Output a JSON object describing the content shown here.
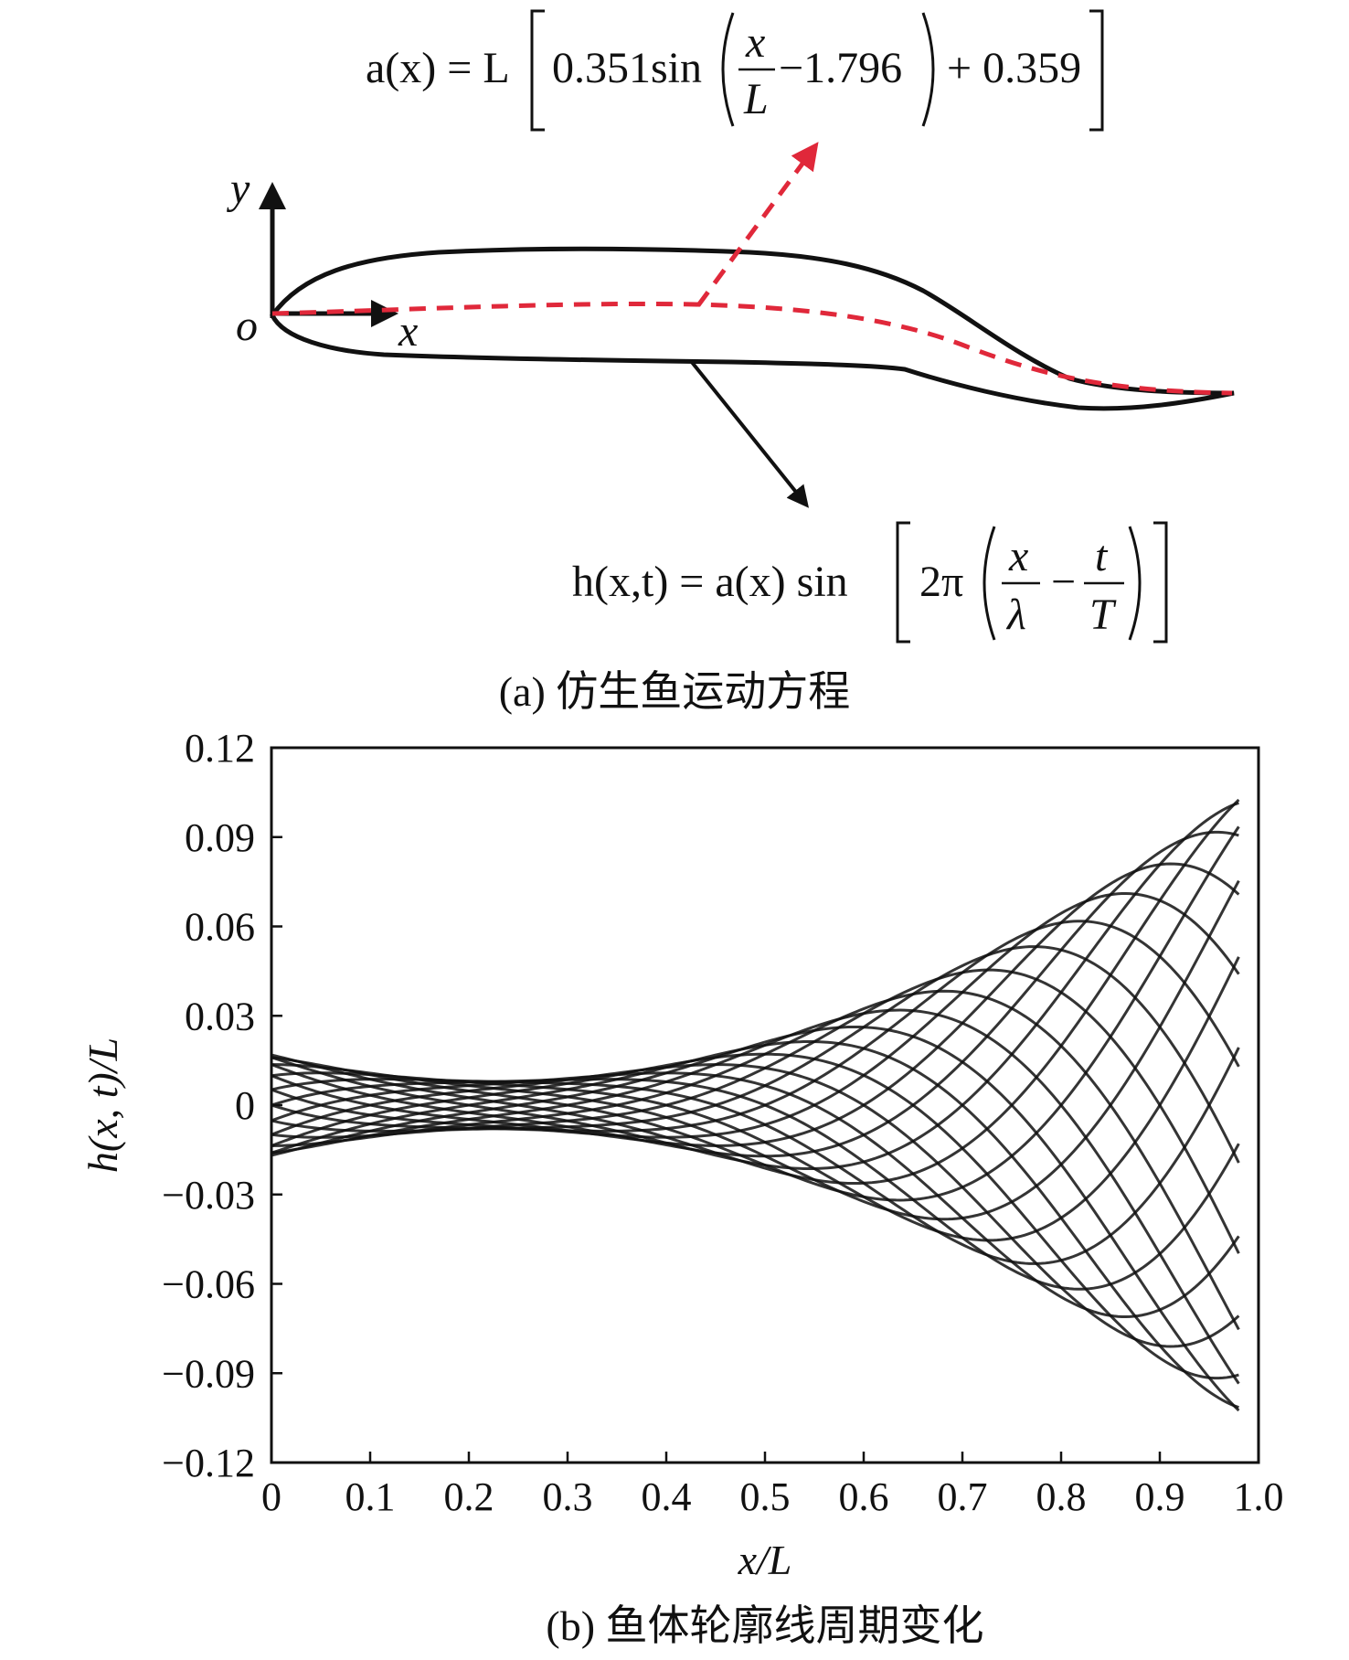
{
  "panel_a": {
    "caption": "(a) 仿生鱼运动方程",
    "axis_y_label": "y",
    "axis_x_label": "x",
    "origin_label": "o",
    "eq_amplitude": {
      "lhs": "a(x) = L",
      "coef": "0.351sin",
      "frac_num": "x",
      "frac_den": "L",
      "phase": "−1.796",
      "offset": "+ 0.359"
    },
    "eq_wave": {
      "lhs": "h(x,t) = a(x) sin",
      "two_pi": "2π",
      "frac1_num": "x",
      "frac1_den": "λ",
      "minus": "−",
      "frac2_num": "t",
      "frac2_den": "T"
    },
    "colors": {
      "outline": "#111111",
      "midline": "#e0283a",
      "arrow_amplitude": "#e0283a",
      "arrow_wave": "#111111"
    }
  },
  "chart_data": {
    "type": "line",
    "xlabel": "x/L",
    "ylabel": "h(x, t)/L",
    "xlim": [
      0,
      1.0
    ],
    "ylim": [
      -0.12,
      0.12
    ],
    "x_ticks": [
      "0",
      "0.1",
      "0.2",
      "0.3",
      "0.4",
      "0.5",
      "0.6",
      "0.7",
      "0.8",
      "0.9",
      "1.0"
    ],
    "y_ticks": [
      "0.12",
      "0.09",
      "0.06",
      "0.03",
      "0",
      "−0.03",
      "−0.06",
      "−0.09",
      "−0.12"
    ],
    "x_tick_values": [
      0,
      0.1,
      0.2,
      0.3,
      0.4,
      0.5,
      0.6,
      0.7,
      0.8,
      0.9,
      1.0
    ],
    "y_tick_values": [
      0.12,
      0.09,
      0.06,
      0.03,
      0,
      -0.03,
      -0.06,
      -0.09,
      -0.12
    ],
    "amplitude_coefficients": [
      0.351,
      -1.796,
      0.359
    ],
    "x_end": 0.98,
    "wavelength": 1.0,
    "phase_fractions": [
      0,
      0.05,
      0.1,
      0.15,
      0.2,
      0.25,
      0.3,
      0.35,
      0.4,
      0.45,
      0.5,
      0.55,
      0.6,
      0.65,
      0.7,
      0.75,
      0.8,
      0.85,
      0.9,
      0.95
    ],
    "line_color": "#111111",
    "grid": false,
    "caption": "(b) 鱼体轮廓线周期变化"
  }
}
